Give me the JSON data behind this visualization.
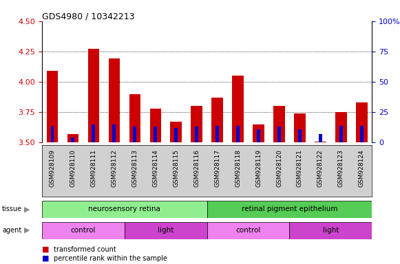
{
  "title": "GDS4980 / 10342213",
  "samples": [
    "GSM928109",
    "GSM928110",
    "GSM928111",
    "GSM928112",
    "GSM928113",
    "GSM928114",
    "GSM928115",
    "GSM928116",
    "GSM928117",
    "GSM928118",
    "GSM928119",
    "GSM928120",
    "GSM928121",
    "GSM928122",
    "GSM928123",
    "GSM928124"
  ],
  "red_values": [
    4.09,
    3.57,
    4.27,
    4.19,
    3.9,
    3.78,
    3.67,
    3.8,
    3.87,
    4.05,
    3.65,
    3.8,
    3.74,
    3.51,
    3.75,
    3.83
  ],
  "blue_percentile": [
    13,
    4,
    15,
    15,
    13,
    13,
    12,
    13,
    14,
    14,
    11,
    13,
    11,
    7,
    14,
    14
  ],
  "ymin": 3.5,
  "ymax": 4.5,
  "y_ticks": [
    3.5,
    3.75,
    4.0,
    4.25,
    4.5
  ],
  "y2min": 0,
  "y2max": 100,
  "y2_ticks": [
    0,
    25,
    50,
    75,
    100
  ],
  "tissue_groups": [
    {
      "label": "neurosensory retina",
      "start": 0,
      "end": 8,
      "color": "#90ee90"
    },
    {
      "label": "retinal pigment epithelium",
      "start": 8,
      "end": 16,
      "color": "#55cc55"
    }
  ],
  "agent_groups": [
    {
      "label": "control",
      "start": 0,
      "end": 4,
      "color": "#ee82ee"
    },
    {
      "label": "light",
      "start": 4,
      "end": 8,
      "color": "#cc44cc"
    },
    {
      "label": "control",
      "start": 8,
      "end": 12,
      "color": "#ee82ee"
    },
    {
      "label": "light",
      "start": 12,
      "end": 16,
      "color": "#cc44cc"
    }
  ],
  "bar_width": 0.55,
  "red_color": "#cc0000",
  "blue_color": "#0000cc",
  "plot_bg": "#ffffff",
  "tick_area_bg": "#d0d0d0",
  "legend_red": "transformed count",
  "legend_blue": "percentile rank within the sample"
}
